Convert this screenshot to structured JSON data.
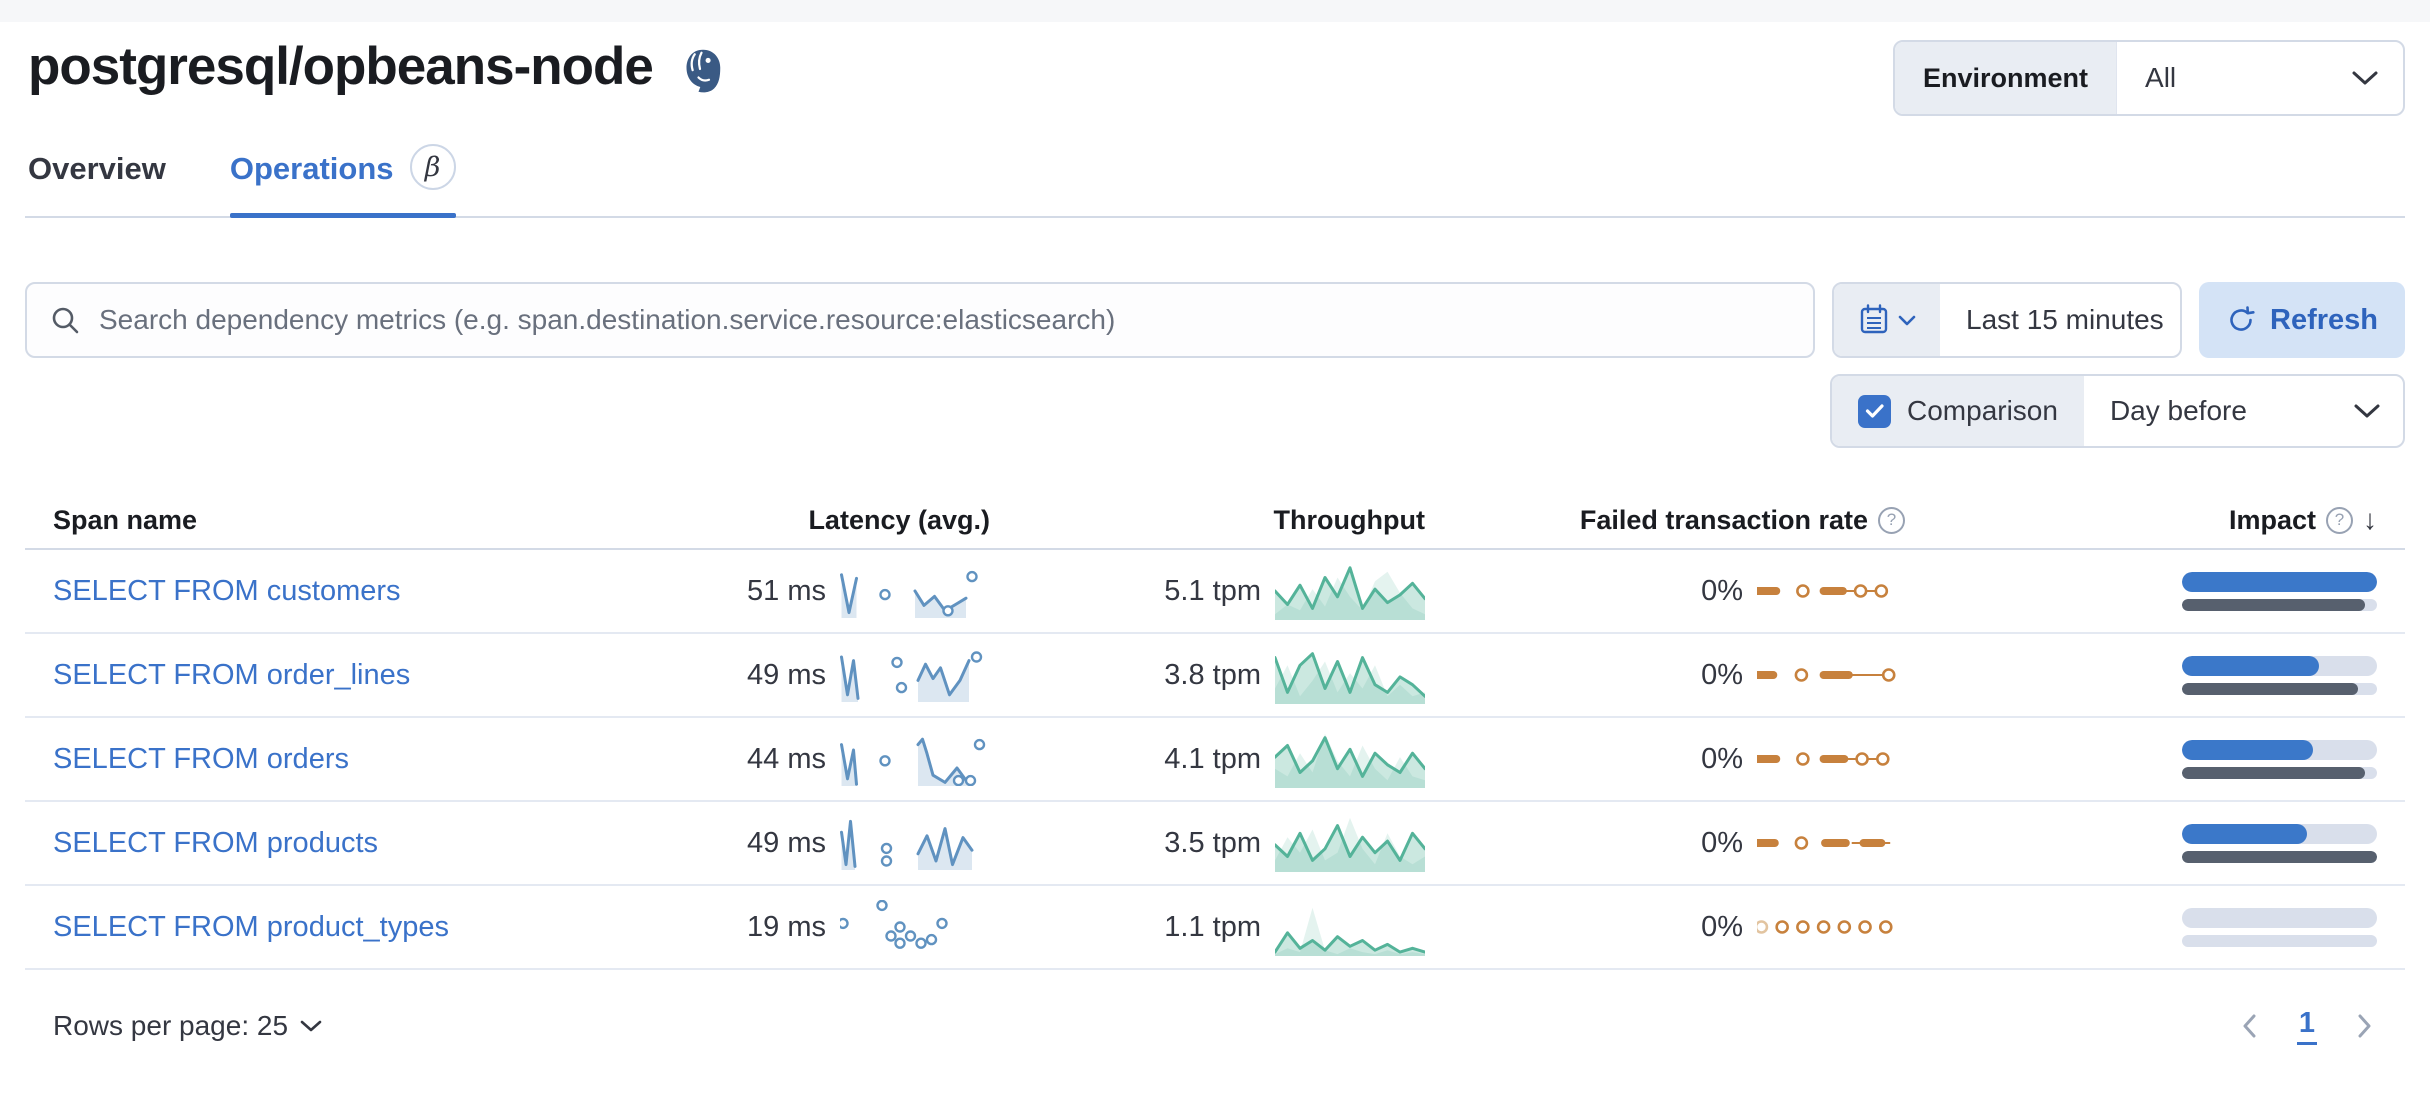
{
  "colors": {
    "accent": "#3a72c9",
    "refresh_bg": "#d4e3f6",
    "prepend_bg": "#e9edf3",
    "border": "#d3dae6",
    "row_border": "#e4e9f2",
    "text": "#343741",
    "muted_text": "#69707d",
    "spark_blue": "#6092c0",
    "spark_green": "#54b399",
    "spark_orange": "#c7813d",
    "impact_blue": "#3b78c9",
    "impact_gray": "#57606e",
    "impact_track": "#d9dfeb"
  },
  "header": {
    "title": "postgresql/opbeans-node",
    "logo": "postgresql-elephant"
  },
  "environment_filter": {
    "label": "Environment",
    "value": "All"
  },
  "tabs": {
    "overview": "Overview",
    "operations": "Operations",
    "beta": "β"
  },
  "controls": {
    "search_placeholder": "Search dependency metrics (e.g. span.destination.service.resource:elasticsearch)",
    "time_range": "Last 15 minutes",
    "refresh_label": "Refresh",
    "comparison_label": "Comparison",
    "comparison_checked": true,
    "comparison_value": "Day before"
  },
  "table": {
    "headers": {
      "span": "Span name",
      "latency": "Latency (avg.)",
      "throughput": "Throughput",
      "failed": "Failed transaction rate",
      "impact": "Impact"
    },
    "rows": [
      {
        "name": "SELECT FROM customers",
        "latency": "51 ms",
        "throughput": "5.1 tpm",
        "failed_rate": "0%",
        "impact": {
          "current": 100,
          "previous": 94
        },
        "latency_spark": {
          "kind": "line",
          "color": "#6092c0",
          "fill": "rgba(96,146,192,0.22)",
          "segments": [
            [
              [
                1,
                6
              ],
              [
                6,
                27
              ],
              [
                11,
                8
              ]
            ],
            [
              [
                50,
                15
              ],
              [
                56,
                23
              ],
              [
                63,
                18
              ],
              [
                70,
                26
              ],
              [
                78,
                22
              ],
              [
                84,
                19
              ]
            ]
          ],
          "dots": [
            [
              30,
              17
            ],
            [
              72,
              26
            ],
            [
              88,
              7
            ]
          ]
        },
        "throughput_spark": {
          "kind": "area",
          "color": "#54b399",
          "fill": "rgba(84,179,153,0.30)",
          "compFill": "rgba(84,179,153,0.16)",
          "current": [
            15,
            22,
            12,
            24,
            8,
            18,
            3,
            24,
            14,
            21,
            17,
            11,
            19
          ],
          "comparison": [
            27,
            22,
            25,
            14,
            23,
            8,
            18,
            25,
            10,
            5,
            16,
            24,
            27
          ]
        },
        "failed_spark": {
          "kind": "marks",
          "color": "#c7813d",
          "muted": "#e2c4a0",
          "marks": [
            {
              "t": "dash",
              "a": 0,
              "b": 13
            },
            {
              "t": "circle",
              "a": 31
            },
            {
              "t": "dash",
              "a": 45,
              "b": 58
            },
            {
              "t": "line",
              "a": 58,
              "b": 84
            },
            {
              "t": "circle",
              "a": 70
            },
            {
              "t": "circle",
              "a": 84
            }
          ]
        }
      },
      {
        "name": "SELECT FROM order_lines",
        "latency": "49 ms",
        "throughput": "3.8 tpm",
        "failed_rate": "0%",
        "impact": {
          "current": 70,
          "previous": 90
        },
        "latency_spark": {
          "kind": "line",
          "color": "#6092c0",
          "fill": "rgba(96,146,192,0.22)",
          "segments": [
            [
              [
                1,
                5
              ],
              [
                5,
                26
              ],
              [
                9,
                7
              ],
              [
                12,
                28
              ]
            ],
            [
              [
                52,
                18
              ],
              [
                57,
                9
              ],
              [
                62,
                17
              ],
              [
                67,
                11
              ],
              [
                73,
                26
              ],
              [
                80,
                18
              ],
              [
                86,
                7
              ]
            ]
          ],
          "dots": [
            [
              38,
              8
            ],
            [
              41,
              22
            ],
            [
              91,
              5
            ]
          ]
        },
        "throughput_spark": {
          "kind": "area",
          "color": "#54b399",
          "fill": "rgba(84,179,153,0.30)",
          "compFill": "rgba(84,179,153,0.16)",
          "current": [
            6,
            24,
            10,
            4,
            22,
            8,
            24,
            6,
            20,
            24,
            16,
            20,
            26
          ],
          "comparison": [
            22,
            10,
            26,
            18,
            8,
            24,
            14,
            22,
            10,
            26,
            20,
            26,
            24
          ]
        },
        "failed_spark": {
          "kind": "marks",
          "color": "#c7813d",
          "muted": "#e2c4a0",
          "marks": [
            {
              "t": "dash",
              "a": 0,
              "b": 11
            },
            {
              "t": "circle",
              "a": 30
            },
            {
              "t": "dash",
              "a": 45,
              "b": 62
            },
            {
              "t": "line",
              "a": 62,
              "b": 88
            },
            {
              "t": "circle",
              "a": 89
            }
          ]
        }
      },
      {
        "name": "SELECT FROM orders",
        "latency": "44 ms",
        "throughput": "4.1 tpm",
        "failed_rate": "0%",
        "impact": {
          "current": 67,
          "previous": 94
        },
        "latency_spark": {
          "kind": "line",
          "color": "#6092c0",
          "fill": "rgba(96,146,192,0.22)",
          "segments": [
            [
              [
                1,
                7
              ],
              [
                5,
                26
              ],
              [
                9,
                10
              ],
              [
                11,
                29
              ]
            ],
            [
              [
                52,
                7
              ],
              [
                55,
                4
              ],
              [
                58,
                12
              ],
              [
                62,
                24
              ],
              [
                70,
                28
              ],
              [
                78,
                20
              ],
              [
                85,
                28
              ]
            ]
          ],
          "dots": [
            [
              30,
              16
            ],
            [
              79,
              27
            ],
            [
              87,
              27
            ],
            [
              93,
              7
            ]
          ]
        },
        "throughput_spark": {
          "kind": "area",
          "color": "#54b399",
          "fill": "rgba(84,179,153,0.30)",
          "compFill": "rgba(84,179,153,0.16)",
          "current": [
            14,
            8,
            22,
            16,
            4,
            20,
            10,
            24,
            12,
            18,
            22,
            12,
            20
          ],
          "comparison": [
            20,
            24,
            12,
            22,
            2,
            16,
            24,
            8,
            20,
            26,
            14,
            24,
            26
          ]
        },
        "failed_spark": {
          "kind": "marks",
          "color": "#c7813d",
          "muted": "#e2c4a0",
          "marks": [
            {
              "t": "dash",
              "a": 0,
              "b": 13
            },
            {
              "t": "circle",
              "a": 31
            },
            {
              "t": "dash",
              "a": 45,
              "b": 59
            },
            {
              "t": "line",
              "a": 59,
              "b": 85
            },
            {
              "t": "circle",
              "a": 71
            },
            {
              "t": "circle",
              "a": 85
            }
          ]
        }
      },
      {
        "name": "SELECT FROM products",
        "latency": "49 ms",
        "throughput": "3.5 tpm",
        "failed_rate": "0%",
        "impact": {
          "current": 64,
          "previous": 100
        },
        "latency_spark": {
          "kind": "line",
          "color": "#6092c0",
          "fill": "rgba(96,146,192,0.22)",
          "segments": [
            [
              [
                1,
                9
              ],
              [
                4,
                27
              ],
              [
                7,
                3
              ],
              [
                10,
                28
              ]
            ],
            [
              [
                52,
                21
              ],
              [
                58,
                11
              ],
              [
                64,
                25
              ],
              [
                70,
                7
              ],
              [
                75,
                27
              ],
              [
                82,
                12
              ],
              [
                88,
                19
              ]
            ]
          ],
          "dots": [
            [
              31,
              18
            ],
            [
              31,
              25
            ]
          ]
        },
        "throughput_spark": {
          "kind": "area",
          "color": "#54b399",
          "fill": "rgba(84,179,153,0.30)",
          "compFill": "rgba(84,179,153,0.16)",
          "current": [
            16,
            22,
            10,
            24,
            18,
            6,
            22,
            12,
            20,
            14,
            24,
            10,
            18
          ],
          "comparison": [
            24,
            12,
            20,
            8,
            24,
            20,
            2,
            18,
            26,
            10,
            22,
            26,
            22
          ]
        },
        "failed_spark": {
          "kind": "marks",
          "color": "#c7813d",
          "muted": "#e2c4a0",
          "marks": [
            {
              "t": "dash",
              "a": 0,
              "b": 12
            },
            {
              "t": "circle",
              "a": 30
            },
            {
              "t": "dash",
              "a": 46,
              "b": 60
            },
            {
              "t": "line",
              "a": 64,
              "b": 90
            },
            {
              "t": "dash",
              "a": 72,
              "b": 84
            }
          ]
        }
      },
      {
        "name": "SELECT FROM product_types",
        "latency": "19 ms",
        "throughput": "1.1 tpm",
        "failed_rate": "0%",
        "impact": {
          "current": 0,
          "previous": 0
        },
        "latency_spark": {
          "kind": "line",
          "color": "#6092c0",
          "fill": "rgba(96,146,192,0.22)",
          "segments": [],
          "dots": [
            [
              2,
              13
            ],
            [
              28,
              3
            ],
            [
              34,
              20
            ],
            [
              40,
              15
            ],
            [
              40,
              24
            ],
            [
              47,
              20
            ],
            [
              54,
              24
            ],
            [
              61,
              22
            ],
            [
              68,
              13
            ]
          ]
        },
        "throughput_spark": {
          "kind": "area",
          "color": "#54b399",
          "fill": "rgba(84,179,153,0.30)",
          "compFill": "rgba(84,179,153,0.16)",
          "current": [
            28,
            18,
            26,
            22,
            27,
            20,
            25,
            22,
            27,
            24,
            28,
            26,
            28
          ],
          "comparison": [
            29,
            26,
            28,
            5,
            27,
            29,
            26,
            28,
            29,
            27,
            29,
            28,
            29
          ]
        },
        "failed_spark": {
          "kind": "marks",
          "color": "#c7813d",
          "muted": "#e2c4a0",
          "marks": [
            {
              "t": "circle",
              "a": 3,
              "muted": true
            },
            {
              "t": "circle",
              "a": 17
            },
            {
              "t": "circle",
              "a": 31
            },
            {
              "t": "circle",
              "a": 45
            },
            {
              "t": "circle",
              "a": 59
            },
            {
              "t": "circle",
              "a": 73
            },
            {
              "t": "circle",
              "a": 87
            }
          ]
        }
      }
    ]
  },
  "pagination": {
    "rows_per_page": "Rows per page: 25",
    "current_page": "1"
  }
}
